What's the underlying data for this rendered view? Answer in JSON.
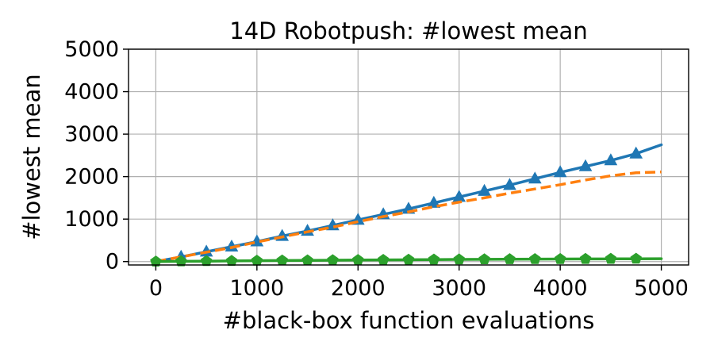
{
  "chart_data": {
    "type": "line",
    "title": "14D Robotpush: #lowest mean",
    "xlabel": "#black-box function evaluations",
    "ylabel": "#lowest mean",
    "xlim": [
      -270,
      5270
    ],
    "ylim": [
      -80,
      5000
    ],
    "xticks": [
      0,
      1000,
      2000,
      3000,
      4000,
      5000
    ],
    "yticks": [
      0,
      1000,
      2000,
      3000,
      4000,
      5000
    ],
    "xtick_labels": [
      "0",
      "1000",
      "2000",
      "3000",
      "4000",
      "5000"
    ],
    "ytick_labels": [
      "0",
      "1000",
      "2000",
      "3000",
      "4000",
      "5000"
    ],
    "grid": true,
    "legend": "none",
    "series": [
      {
        "color": "#1f77b4",
        "linestyle": "solid",
        "marker": "triangle",
        "x": [
          0,
          250,
          500,
          750,
          1000,
          1250,
          1500,
          1750,
          2000,
          2250,
          2500,
          2750,
          3000,
          3250,
          3500,
          3750,
          4000,
          4250,
          4500,
          4750,
          5000
        ],
        "values": [
          0,
          110,
          230,
          350,
          470,
          600,
          720,
          850,
          980,
          1110,
          1240,
          1380,
          1520,
          1660,
          1800,
          1950,
          2100,
          2240,
          2380,
          2540,
          2750
        ],
        "marker_x": [
          250,
          500,
          750,
          1000,
          1250,
          1500,
          1750,
          2000,
          2250,
          2500,
          2750,
          3000,
          3250,
          3500,
          3750,
          4000,
          4250,
          4500,
          4750
        ]
      },
      {
        "color": "#ff7f0e",
        "linestyle": "dashed",
        "marker": "none",
        "x": [
          0,
          250,
          500,
          750,
          1000,
          1250,
          1500,
          1750,
          2000,
          2250,
          2500,
          2750,
          3000,
          3250,
          3500,
          3750,
          4000,
          4250,
          4500,
          4750,
          5000
        ],
        "values": [
          0,
          110,
          220,
          330,
          460,
          580,
          700,
          810,
          940,
          1060,
          1170,
          1290,
          1400,
          1500,
          1610,
          1710,
          1810,
          1920,
          2020,
          2090,
          2110
        ]
      },
      {
        "color": "#2ca02c",
        "linestyle": "solid",
        "marker": "pentagon",
        "x": [
          0,
          250,
          500,
          750,
          1000,
          1250,
          1500,
          1750,
          2000,
          2250,
          2500,
          2750,
          3000,
          3250,
          3500,
          3750,
          4000,
          4250,
          4500,
          4750,
          5000
        ],
        "values": [
          0,
          5,
          10,
          15,
          20,
          25,
          28,
          32,
          36,
          40,
          44,
          47,
          50,
          53,
          56,
          58,
          60,
          62,
          64,
          66,
          68
        ],
        "marker_x": [
          0,
          250,
          500,
          750,
          1000,
          1250,
          1500,
          1750,
          2000,
          2250,
          2500,
          2750,
          3000,
          3250,
          3500,
          3750,
          4000,
          4250,
          4500,
          4750
        ]
      }
    ]
  }
}
